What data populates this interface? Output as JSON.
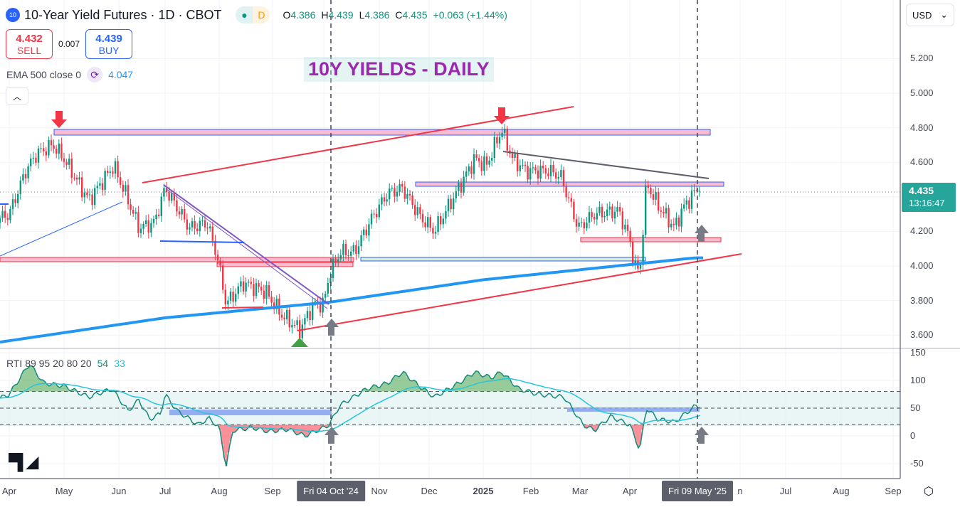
{
  "header": {
    "badge": "10",
    "symbol": "10-Year Yield Futures · 1D · CBOT",
    "status_dot": "●",
    "interval_badge": "D",
    "ohlc": {
      "o_label": "O",
      "o": "4.386",
      "h_label": "H",
      "h": "4.439",
      "l_label": "L",
      "l": "4.386",
      "c_label": "C",
      "c": "4.435",
      "change": "+0.063 (+1.44%)"
    }
  },
  "trade": {
    "sell_price": "4.432",
    "sell_label": "SELL",
    "spread": "0.007",
    "buy_price": "4.439",
    "buy_label": "BUY"
  },
  "ema": {
    "label": "EMA 500 close 0",
    "value": "4.047",
    "icon": "refresh-icon"
  },
  "annotation_title": "10Y YIELDS - DAILY",
  "currency": "USD",
  "price_axis": [
    "5.200",
    "5.000",
    "4.800",
    "4.600",
    "4.200",
    "4.000",
    "3.800",
    "3.600"
  ],
  "price_tag": {
    "price": "4.435",
    "countdown": "13:16:47"
  },
  "rti": {
    "label": "RTI 89 95 20 80 20",
    "value1": "54",
    "value2": "33",
    "axis": [
      "150",
      "100",
      "50",
      "0",
      "-50"
    ]
  },
  "time_axis": [
    "Apr",
    "May",
    "Jun",
    "Jul",
    "Aug",
    "Sep",
    "Nov",
    "Dec",
    "2025",
    "Feb",
    "Mar",
    "Apr",
    "n",
    "Jul",
    "Aug",
    "Sep"
  ],
  "time_markers": [
    "Fri 04 Oct '24",
    "Fri 09 May '25"
  ],
  "logo": "TV",
  "colors": {
    "up": "#089981",
    "down": "#f23645",
    "ema": "#2196f3",
    "accent": "#26a69a"
  },
  "chart_data": {
    "type": "candlestick",
    "title": "10-Year Yield Futures · 1D · CBOT",
    "ylim": [
      3.55,
      5.3
    ],
    "price_path": [
      [
        "2024-03-20",
        4.25
      ],
      [
        "2024-04-01",
        4.3
      ],
      [
        "2024-04-10",
        4.55
      ],
      [
        "2024-04-16",
        4.65
      ],
      [
        "2024-04-25",
        4.7
      ],
      [
        "2024-05-01",
        4.62
      ],
      [
        "2024-05-15",
        4.38
      ],
      [
        "2024-05-29",
        4.58
      ],
      [
        "2024-06-07",
        4.38
      ],
      [
        "2024-06-14",
        4.22
      ],
      [
        "2024-06-24",
        4.25
      ],
      [
        "2024-07-01",
        4.45
      ],
      [
        "2024-07-15",
        4.22
      ],
      [
        "2024-07-25",
        4.25
      ],
      [
        "2024-07-31",
        4.05
      ],
      [
        "2024-08-05",
        3.78
      ],
      [
        "2024-08-15",
        3.9
      ],
      [
        "2024-08-28",
        3.85
      ],
      [
        "2024-09-06",
        3.72
      ],
      [
        "2024-09-17",
        3.63
      ],
      [
        "2024-09-25",
        3.78
      ],
      [
        "2024-10-01",
        3.78
      ],
      [
        "2024-10-04",
        3.95
      ],
      [
        "2024-10-10",
        4.08
      ],
      [
        "2024-10-18",
        4.08
      ],
      [
        "2024-10-28",
        4.28
      ],
      [
        "2024-11-06",
        4.42
      ],
      [
        "2024-11-15",
        4.45
      ],
      [
        "2024-11-26",
        4.28
      ],
      [
        "2024-12-04",
        4.2
      ],
      [
        "2024-12-18",
        4.45
      ],
      [
        "2024-12-27",
        4.62
      ],
      [
        "2025-01-03",
        4.58
      ],
      [
        "2025-01-13",
        4.79
      ],
      [
        "2025-01-20",
        4.62
      ],
      [
        "2025-01-29",
        4.55
      ],
      [
        "2025-02-11",
        4.55
      ],
      [
        "2025-02-18",
        4.52
      ],
      [
        "2025-02-28",
        4.22
      ],
      [
        "2025-03-10",
        4.3
      ],
      [
        "2025-03-25",
        4.32
      ],
      [
        "2025-04-01",
        4.15
      ],
      [
        "2025-04-04",
        4.0
      ],
      [
        "2025-04-07",
        3.96
      ],
      [
        "2025-04-11",
        4.48
      ],
      [
        "2025-04-18",
        4.35
      ],
      [
        "2025-04-28",
        4.22
      ],
      [
        "2025-05-02",
        4.32
      ],
      [
        "2025-05-09",
        4.435
      ]
    ],
    "ema500": [
      [
        "2024-03-20",
        3.55
      ],
      [
        "2024-07-01",
        3.7
      ],
      [
        "2024-10-04",
        3.79
      ],
      [
        "2025-01-01",
        3.92
      ],
      [
        "2025-05-09",
        4.047
      ]
    ],
    "rti_ylim": [
      -65,
      155
    ],
    "rti_bands": [
      20,
      50,
      80
    ],
    "rti_path": [
      [
        "2024-03-20",
        60
      ],
      [
        "2024-04-01",
        75
      ],
      [
        "2024-04-08",
        110
      ],
      [
        "2024-04-12",
        130
      ],
      [
        "2024-04-20",
        95
      ],
      [
        "2024-05-01",
        90
      ],
      [
        "2024-05-15",
        70
      ],
      [
        "2024-05-28",
        85
      ],
      [
        "2024-06-07",
        45
      ],
      [
        "2024-06-14",
        65
      ],
      [
        "2024-06-21",
        30
      ],
      [
        "2024-06-28",
        40
      ],
      [
        "2024-07-01",
        75
      ],
      [
        "2024-07-08",
        45
      ],
      [
        "2024-07-20",
        20
      ],
      [
        "2024-07-26",
        32
      ],
      [
        "2024-08-01",
        15
      ],
      [
        "2024-08-05",
        -55
      ],
      [
        "2024-08-09",
        10
      ],
      [
        "2024-08-20",
        15
      ],
      [
        "2024-08-30",
        8
      ],
      [
        "2024-09-10",
        12
      ],
      [
        "2024-09-20",
        0
      ],
      [
        "2024-10-01",
        15
      ],
      [
        "2024-10-04",
        20
      ],
      [
        "2024-10-10",
        55
      ],
      [
        "2024-10-25",
        85
      ],
      [
        "2024-11-06",
        95
      ],
      [
        "2024-11-15",
        115
      ],
      [
        "2024-11-25",
        90
      ],
      [
        "2024-12-04",
        70
      ],
      [
        "2024-12-18",
        95
      ],
      [
        "2024-12-27",
        115
      ],
      [
        "2025-01-06",
        105
      ],
      [
        "2025-01-13",
        115
      ],
      [
        "2025-01-24",
        85
      ],
      [
        "2025-02-05",
        75
      ],
      [
        "2025-02-20",
        70
      ],
      [
        "2025-03-03",
        20
      ],
      [
        "2025-03-10",
        10
      ],
      [
        "2025-03-20",
        35
      ],
      [
        "2025-04-01",
        20
      ],
      [
        "2025-04-07",
        -25
      ],
      [
        "2025-04-11",
        50
      ],
      [
        "2025-04-18",
        30
      ],
      [
        "2025-04-28",
        25
      ],
      [
        "2025-05-09",
        54
      ]
    ]
  }
}
